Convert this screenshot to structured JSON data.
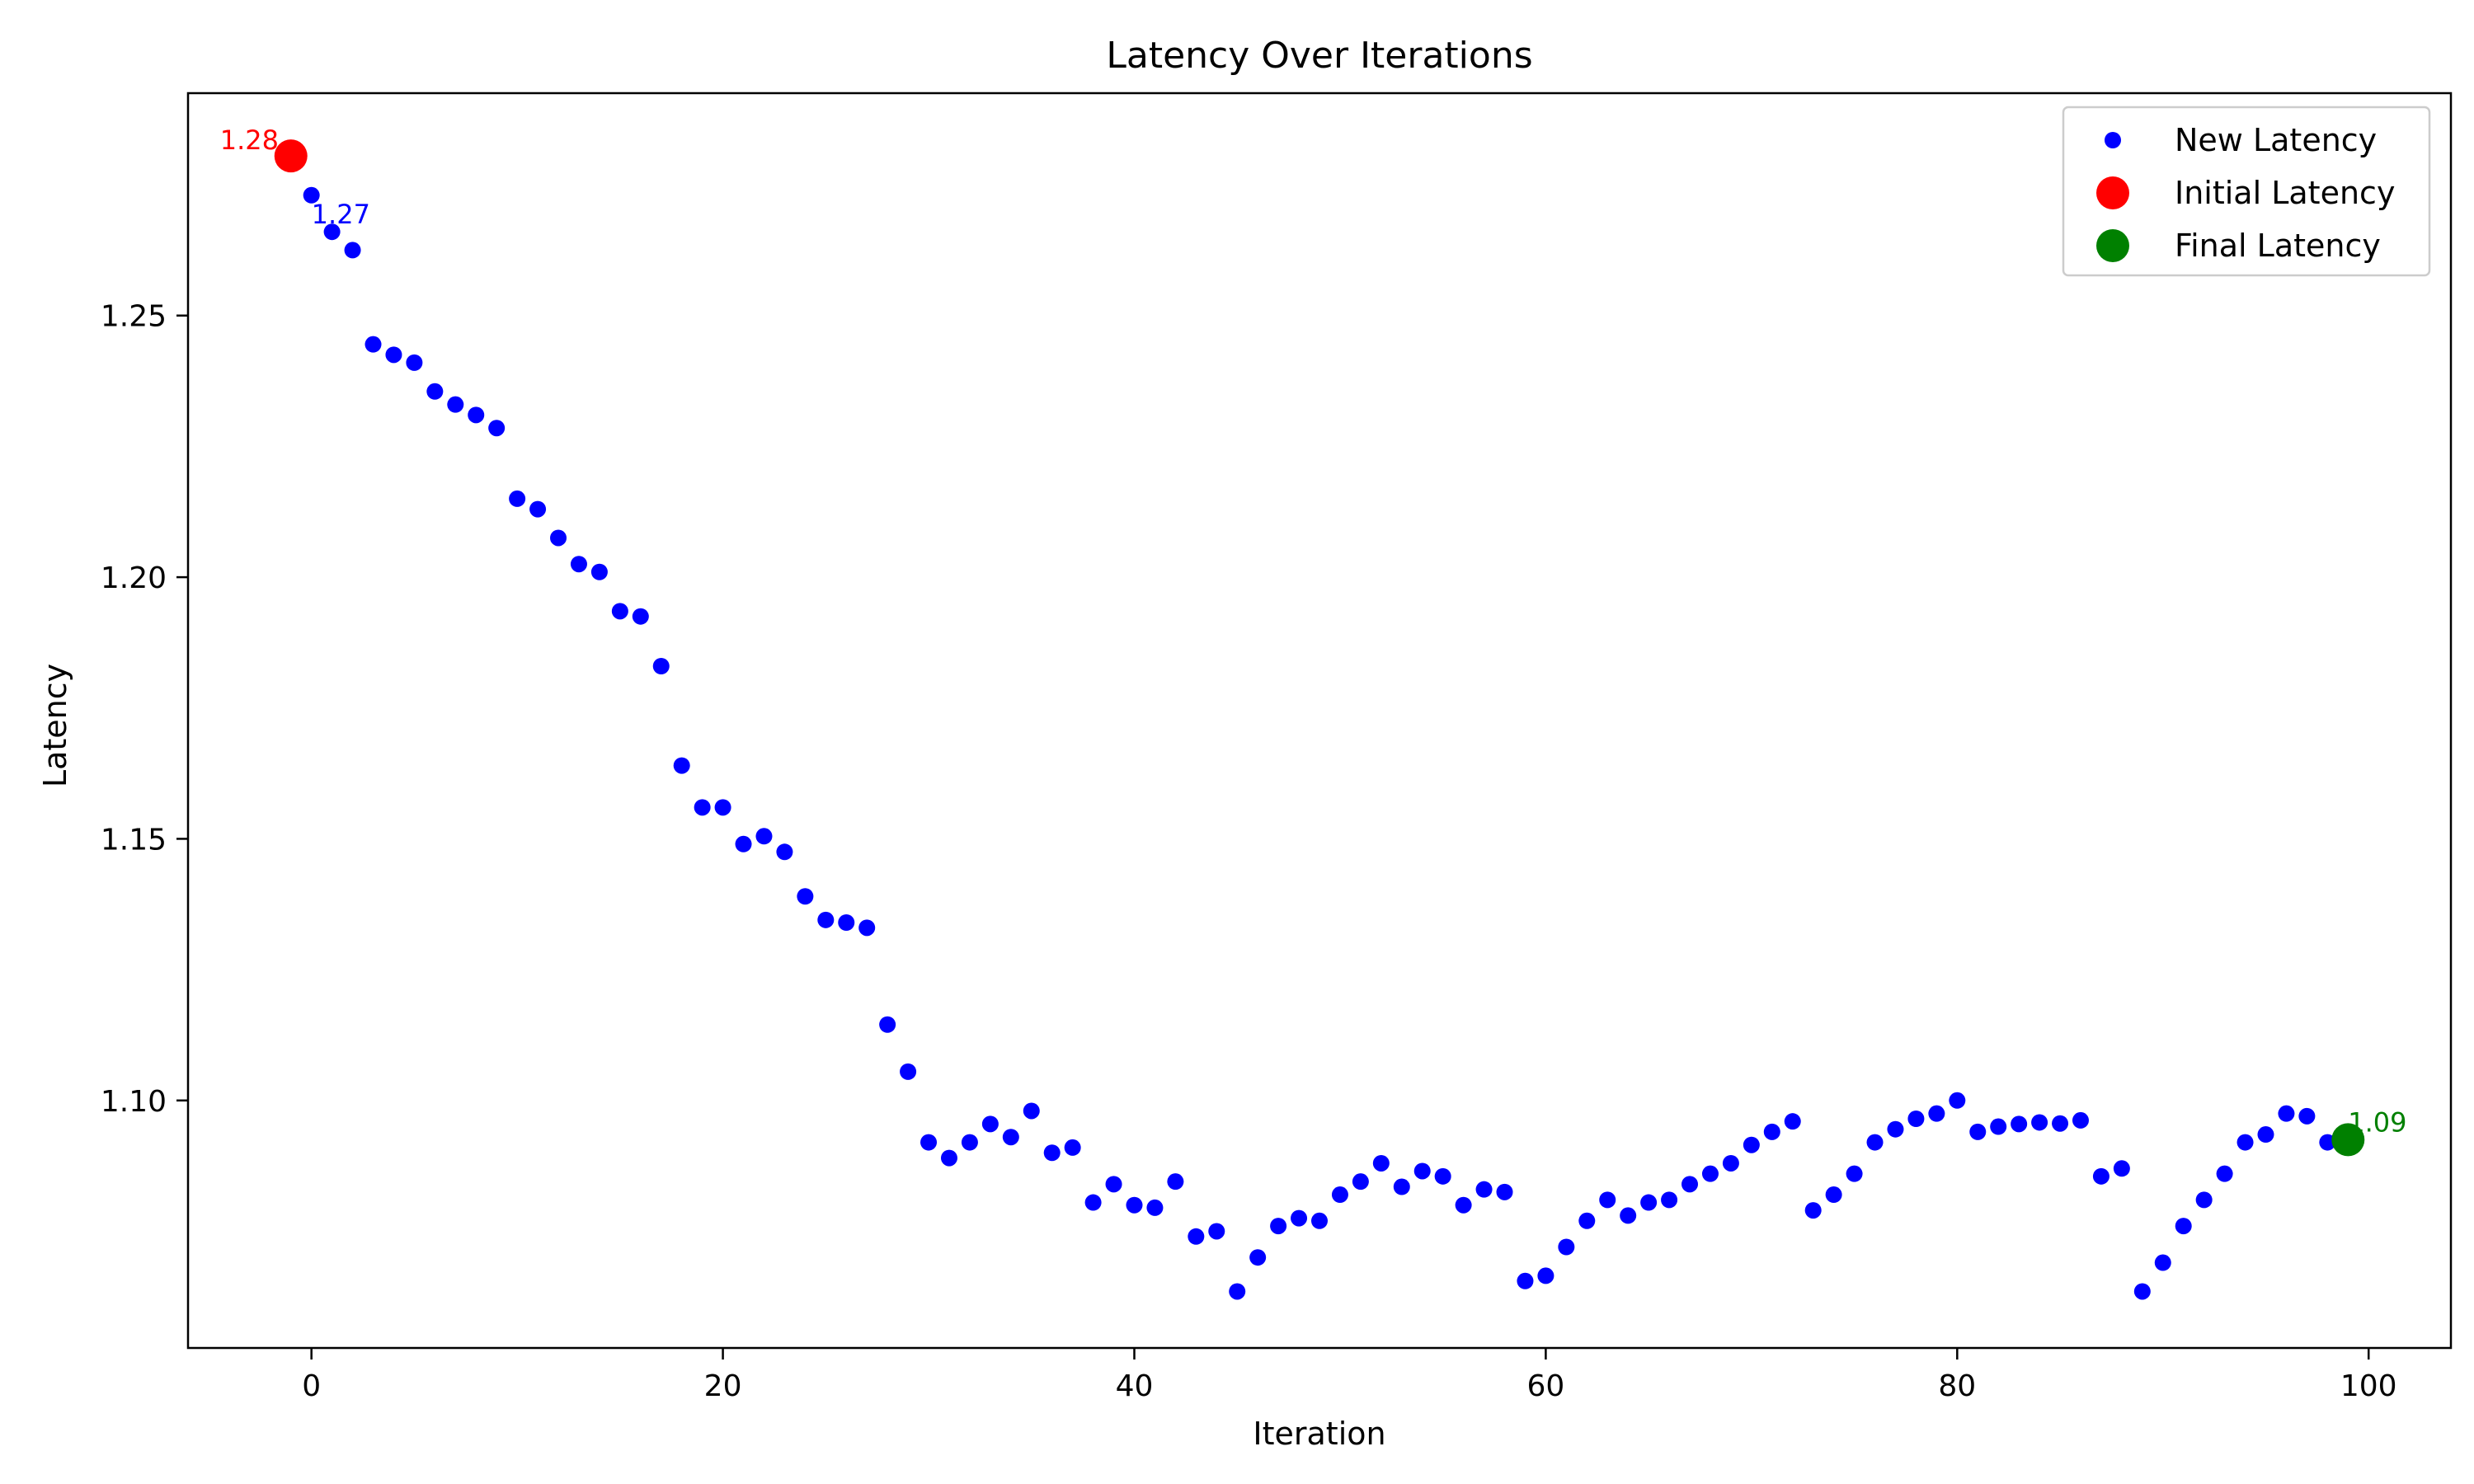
{
  "chart_data": {
    "type": "scatter",
    "title": "Latency Over Iterations",
    "xlabel": "Iteration",
    "ylabel": "Latency",
    "xlim": [
      -6,
      104
    ],
    "ylim": [
      1.0527,
      1.2925
    ],
    "xticks": [
      0,
      20,
      40,
      60,
      80,
      100
    ],
    "yticks": [
      1.1,
      1.15,
      1.2,
      1.25
    ],
    "xtick_labels": [
      "0",
      "20",
      "40",
      "60",
      "80",
      "100"
    ],
    "ytick_labels": [
      "1.10",
      "1.15",
      "1.20",
      "1.25"
    ],
    "grid": false,
    "legend_position": "top-right",
    "series": [
      {
        "name": "New Latency",
        "color": "#0000ff",
        "x": [
          0,
          1,
          2,
          3,
          4,
          5,
          6,
          7,
          8,
          9,
          10,
          11,
          12,
          13,
          14,
          15,
          16,
          17,
          18,
          19,
          20,
          21,
          22,
          23,
          24,
          25,
          26,
          27,
          28,
          29,
          30,
          31,
          32,
          33,
          34,
          35,
          36,
          37,
          38,
          39,
          40,
          41,
          42,
          43,
          44,
          45,
          46,
          47,
          48,
          49,
          50,
          51,
          52,
          53,
          54,
          55,
          56,
          57,
          58,
          59,
          60,
          61,
          62,
          63,
          64,
          65,
          66,
          67,
          68,
          69,
          70,
          71,
          72,
          73,
          74,
          75,
          76,
          77,
          78,
          79,
          80,
          81,
          82,
          83,
          84,
          85,
          86,
          87,
          88,
          89,
          90,
          91,
          92,
          93,
          94,
          95,
          96,
          97,
          98
        ],
        "y": [
          1.273,
          1.266,
          1.2625,
          1.2445,
          1.2425,
          1.241,
          1.2355,
          1.233,
          1.231,
          1.2285,
          1.215,
          1.213,
          1.2075,
          1.2025,
          1.201,
          1.1935,
          1.1925,
          1.183,
          1.164,
          1.156,
          1.156,
          1.149,
          1.1505,
          1.1475,
          1.139,
          1.1345,
          1.134,
          1.133,
          1.1145,
          1.1055,
          1.092,
          1.089,
          1.092,
          1.0955,
          1.093,
          1.098,
          1.09,
          1.091,
          1.0805,
          1.084,
          1.08,
          1.0795,
          1.0845,
          1.074,
          1.075,
          1.0635,
          1.07,
          1.076,
          1.0775,
          1.077,
          1.082,
          1.0845,
          1.088,
          1.0835,
          1.0865,
          1.0855,
          1.08,
          1.083,
          1.0825,
          1.0655,
          1.0665,
          1.072,
          1.077,
          1.081,
          1.078,
          1.0805,
          1.081,
          1.084,
          1.086,
          1.088,
          1.0915,
          1.094,
          1.096,
          1.079,
          1.082,
          1.086,
          1.092,
          1.0945,
          1.0965,
          1.0975,
          1.1,
          1.094,
          1.095,
          1.0955,
          1.0958,
          1.0956,
          1.0962,
          1.0855,
          1.087,
          1.0635,
          1.069,
          1.076,
          1.081,
          1.086,
          1.092,
          1.0935,
          1.0975,
          1.097,
          1.092
        ]
      },
      {
        "name": "Initial Latency",
        "color": "#ff0000",
        "x": [
          -1
        ],
        "y": [
          1.2805
        ]
      },
      {
        "name": "Final Latency",
        "color": "#008000",
        "x": [
          99
        ],
        "y": [
          1.0925
        ]
      }
    ],
    "annotations": [
      {
        "text": "1.28",
        "x": -1,
        "y": 1.2805,
        "color": "#ff0000"
      },
      {
        "text": "1.27",
        "x": 0,
        "y": 1.273,
        "color": "#0000ff"
      },
      {
        "text": "1.09",
        "x": 99,
        "y": 1.0925,
        "color": "#008000"
      }
    ]
  }
}
